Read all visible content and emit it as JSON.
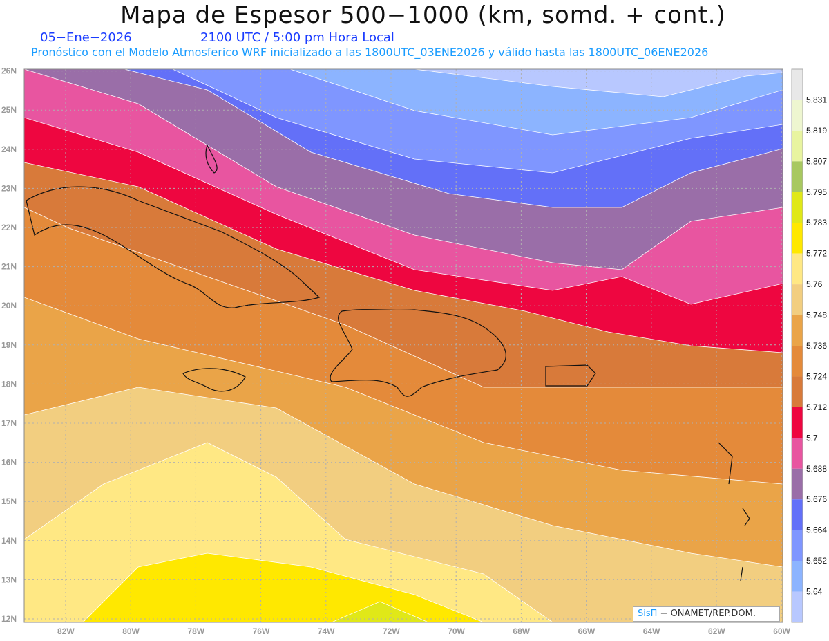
{
  "header": {
    "title": "Mapa de Espesor 500−1000 (km, somd. + cont.)",
    "date": "05−Ene−2026",
    "time": "2100 UTC / 5:00 pm Hora Local",
    "subtitle": "Pronóstico con el Modelo Atmosferico WRF inicializado a las 1800UTC_03ENE2026 y válido hasta las  1800UTC_06ENE2026"
  },
  "axes": {
    "lat_labels": [
      "12N",
      "13N",
      "14N",
      "15N",
      "16N",
      "17N",
      "18N",
      "19N",
      "20N",
      "21N",
      "22N",
      "23N",
      "24N",
      "25N",
      "26N"
    ],
    "lon_labels": [
      "82W",
      "80W",
      "78W",
      "76W",
      "74W",
      "72W",
      "70W",
      "68W",
      "66W",
      "64W",
      "62W",
      "60W"
    ]
  },
  "colorbar": {
    "labels": [
      "5.64",
      "5.652",
      "5.664",
      "5.676",
      "5.688",
      "5.7",
      "5.712",
      "5.724",
      "5.736",
      "5.748",
      "5.76",
      "5.772",
      "5.783",
      "5.795",
      "5.807",
      "5.819",
      "5.831"
    ],
    "colors": [
      "#b8c8ff",
      "#8cb4ff",
      "#7f96ff",
      "#6370f8",
      "#9a6ea8",
      "#e855a0",
      "#ee0640",
      "#d87a3a",
      "#e48a3a",
      "#eaa448",
      "#f2ce80",
      "#ffe884",
      "#ffe800",
      "#e0e818",
      "#a8c860",
      "#e8f4a0",
      "#eef6d0",
      "#e8e8e8"
    ]
  },
  "credit": {
    "brand": "SisΠ",
    "text": " − ONAMET/REP.DOM."
  }
}
